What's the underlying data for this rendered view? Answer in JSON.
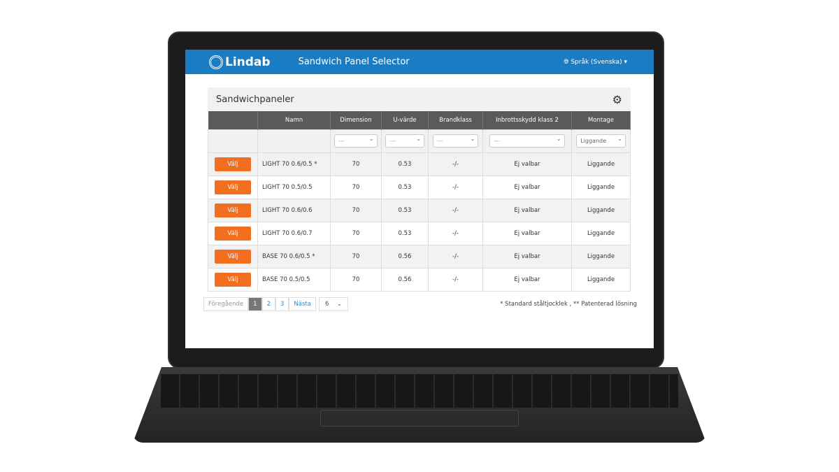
{
  "header": {
    "brand": "Lindab",
    "app_title": "Sandwich Panel Selector",
    "language": "Språk (Svenska)"
  },
  "panel": {
    "title": "Sandwichpaneler"
  },
  "table": {
    "columns": [
      "",
      "Namn",
      "Dimension",
      "U-värde",
      "Brandklass",
      "Inbrottsskydd klass 2",
      "Montage"
    ],
    "filters": [
      "---",
      "---",
      "---",
      "---",
      "Liggande"
    ],
    "select_label": "Välj",
    "rows": [
      [
        "LIGHT 70 0.6/0.5 *",
        "70",
        "0.53",
        "-/-",
        "Ej valbar",
        "Liggande"
      ],
      [
        "LIGHT 70 0.5/0.5",
        "70",
        "0.53",
        "-/-",
        "Ej valbar",
        "Liggande"
      ],
      [
        "LIGHT 70 0.6/0.6",
        "70",
        "0.53",
        "-/-",
        "Ej valbar",
        "Liggande"
      ],
      [
        "LIGHT 70 0.6/0.7",
        "70",
        "0.53",
        "-/-",
        "Ej valbar",
        "Liggande"
      ],
      [
        "BASE 70 0.6/0.5 *",
        "70",
        "0.56",
        "-/-",
        "Ej valbar",
        "Liggande"
      ],
      [
        "BASE 70 0.5/0.5",
        "70",
        "0.56",
        "-/-",
        "Ej valbar",
        "Liggande"
      ]
    ]
  },
  "pagination": {
    "prev": "Föregående",
    "pages": [
      "1",
      "2",
      "3"
    ],
    "current": "1",
    "next": "Nästa",
    "per_page": "6"
  },
  "footnote": "* Standard ståltjocklek , ** Patenterad lösning",
  "colors": {
    "header": "#1a7dc4",
    "button": "#f26f21",
    "table_header": "#5a5a5a"
  }
}
